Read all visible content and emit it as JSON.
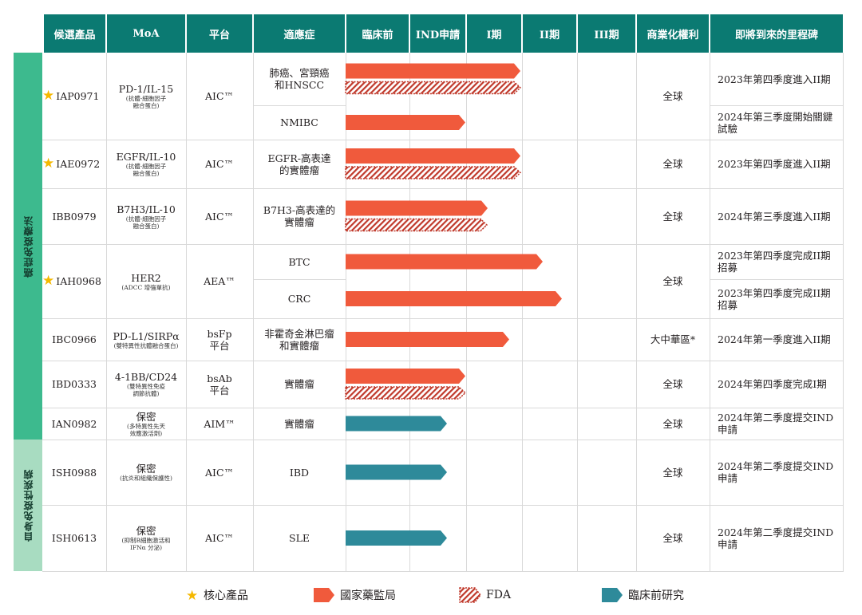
{
  "headers": [
    "候選產品",
    "MoA",
    "平台",
    "適應症",
    "臨床前",
    "IND申請",
    "I期",
    "II期",
    "III期",
    "商業化權利",
    "即將到來的里程碑"
  ],
  "categories": [
    {
      "label": "癌症免疫療法"
    },
    {
      "label": "自身免疫性疾病"
    }
  ],
  "products": [
    {
      "name": "IAP0971",
      "core": true,
      "moa": "PD-1/IL-15",
      "moa_sub": [
        "(抗體-細胞因子",
        "融合蛋白)"
      ],
      "platform": [
        "AIC™"
      ],
      "rights": "全球"
    },
    {
      "name": "IAE0972",
      "core": true,
      "moa": "EGFR/IL-10",
      "moa_sub": [
        "(抗體-細胞因子",
        "融合蛋白)"
      ],
      "platform": [
        "AIC™"
      ],
      "rights": "全球"
    },
    {
      "name": "IBB0979",
      "core": false,
      "moa": "B7H3/IL-10",
      "moa_sub": [
        "(抗體-細胞因子",
        "融合蛋白)"
      ],
      "platform": [
        "AIC™"
      ],
      "rights": "全球"
    },
    {
      "name": "IAH0968",
      "core": true,
      "moa": "HER2",
      "moa_sub": [
        "(ADCC 增強單抗)"
      ],
      "platform": [
        "AEA™"
      ],
      "rights": "全球"
    },
    {
      "name": "IBC0966",
      "core": false,
      "moa": "PD-L1/SIRPα",
      "moa_sub": [
        "(雙特異性抗體融合蛋白)"
      ],
      "platform": [
        "bsFp",
        "平台"
      ],
      "rights": "大中華區*"
    },
    {
      "name": "IBD0333",
      "core": false,
      "moa": "4-1BB/CD24",
      "moa_sub": [
        "(雙特異性免疫",
        "調節抗體)"
      ],
      "platform": [
        "bsAb",
        "平台"
      ],
      "rights": "全球"
    },
    {
      "name": "IAN0982",
      "core": false,
      "moa": "保密",
      "moa_sub": [
        "(多特異性先天",
        "效應激活劑)"
      ],
      "platform": [
        "AIM™"
      ],
      "rights": "全球"
    },
    {
      "name": "ISH0988",
      "core": false,
      "moa": "保密",
      "moa_sub": [
        "(抗炎和組織保護性)"
      ],
      "platform": [
        "AIC™"
      ],
      "rights": "全球"
    },
    {
      "name": "ISH0613",
      "core": false,
      "moa": "保密",
      "moa_sub": [
        "(抑制B細胞激活和",
        "IFNα 分泌)"
      ],
      "platform": [
        "AIC™"
      ],
      "rights": "全球"
    }
  ],
  "indications": [
    {
      "product": 0,
      "text": [
        "肺癌、宮頸癌",
        "和HNSCC"
      ],
      "milestone": [
        "2023年第四季度進入II期"
      ],
      "nmpa_stage": "I期",
      "fda_stage": "I期",
      "preclinical_stage": null
    },
    {
      "product": 0,
      "text": [
        "NMIBC"
      ],
      "milestone": [
        "2024年第三季度開始關鍵",
        "試驗"
      ],
      "nmpa_stage": "IND申請",
      "fda_stage": null,
      "preclinical_stage": null
    },
    {
      "product": 1,
      "text": [
        "EGFR-高表達",
        "的實體瘤"
      ],
      "milestone": [
        "2023年第四季度進入II期"
      ],
      "nmpa_stage": "I期",
      "fda_stage": "I期",
      "preclinical_stage": null
    },
    {
      "product": 2,
      "text": [
        "B7H3-高表達的",
        "實體瘤"
      ],
      "milestone": [
        "2024年第三季度進入II期"
      ],
      "nmpa_stage": "I期",
      "fda_stage": "I期",
      "preclinical_stage": null
    },
    {
      "product": 3,
      "text": [
        "BTC"
      ],
      "milestone": [
        "2023年第四季度完成II期",
        "招募"
      ],
      "nmpa_stage": "II期",
      "fda_stage": null,
      "preclinical_stage": null
    },
    {
      "product": 3,
      "text": [
        "CRC"
      ],
      "milestone": [
        "2023年第四季度完成II期",
        "招募"
      ],
      "nmpa_stage": "II期",
      "fda_stage": null,
      "preclinical_stage": null
    },
    {
      "product": 4,
      "text": [
        "非霍奇金淋巴瘤",
        "和實體瘤"
      ],
      "milestone": [
        "2024年第一季度進入II期"
      ],
      "nmpa_stage": "I期",
      "fda_stage": null,
      "preclinical_stage": null
    },
    {
      "product": 5,
      "text": [
        "實體瘤"
      ],
      "milestone": [
        "2024年第四季度完成I期"
      ],
      "nmpa_stage": "IND申請",
      "fda_stage": "IND申請",
      "preclinical_stage": null
    },
    {
      "product": 6,
      "text": [
        "實體瘤"
      ],
      "milestone": [
        "2024年第二季度提交IND",
        "申請"
      ],
      "nmpa_stage": null,
      "fda_stage": null,
      "preclinical_stage": "IND申請"
    },
    {
      "product": 7,
      "text": [
        "IBD"
      ],
      "milestone": [
        "2024年第二季度提交IND",
        "申請"
      ],
      "nmpa_stage": null,
      "fda_stage": null,
      "preclinical_stage": "IND申請"
    },
    {
      "product": 8,
      "text": [
        "SLE"
      ],
      "milestone": [
        "2024年第二季度提交IND",
        "申請"
      ],
      "nmpa_stage": null,
      "fda_stage": null,
      "preclinical_stage": "IND申請"
    }
  ],
  "legend": {
    "core": "核心產品",
    "nmpa": "國家藥監局",
    "fda": "FDA",
    "preclinical": "臨床前研究"
  },
  "colors": {
    "header_bg": "#0b7a72",
    "header_text": "#ffffff",
    "nmpa": "#f05a3c",
    "fda": "#c0392b",
    "preclinical": "#2e8a9a",
    "category_oncology": "#3dba8e",
    "category_autoimmune": "#a8dcc1",
    "star": "#f5b800"
  }
}
